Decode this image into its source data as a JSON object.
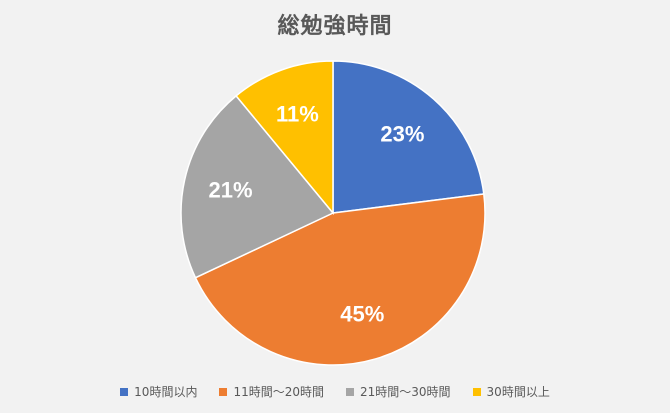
{
  "chart_data": {
    "type": "pie",
    "title": "総勉強時間",
    "categories": [
      "10時間以内",
      "11時間〜20時間",
      "21時間〜30時間",
      "30時間以上"
    ],
    "values": [
      23,
      45,
      21,
      11
    ],
    "labels": [
      "23%",
      "45%",
      "21%",
      "11%"
    ],
    "colors": [
      "#4472c4",
      "#ed7d31",
      "#a5a5a5",
      "#ffc000"
    ],
    "legend_position": "bottom",
    "start_angle": "12 o'clock",
    "direction": "clockwise"
  }
}
